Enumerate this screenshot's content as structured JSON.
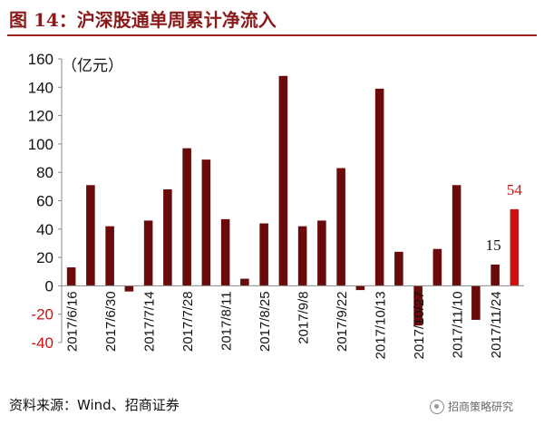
{
  "page": {
    "title": "图 14：沪深股通单周累计净流入",
    "source": "资料来源：Wind、招商证券",
    "watermark": "招商策略研究",
    "watermark_icon": "wechat-icon"
  },
  "chart_data": {
    "type": "bar",
    "unit_label": "（亿元）",
    "ylim": [
      -40,
      160
    ],
    "yticks": [
      -40,
      -20,
      0,
      20,
      40,
      60,
      80,
      100,
      120,
      140,
      160
    ],
    "grid": false,
    "bar_color": "#6b0a0a",
    "highlight_color": "#cc1111",
    "negative_tick_color": "#cc1111",
    "x_tick_labels": [
      "2017/6/16",
      "2017/6/30",
      "2017/7/14",
      "2017/7/28",
      "2017/8/11",
      "2017/8/25",
      "2017/9/8",
      "2017/9/22",
      "2017/10/13",
      "2017/10/27",
      "2017/11/10",
      "2017/11/24"
    ],
    "values": [
      13,
      71,
      42,
      -4,
      46,
      68,
      97,
      89,
      47,
      5,
      44,
      148,
      42,
      46,
      83,
      -3,
      139,
      24,
      -28,
      26,
      71,
      -24,
      15,
      54
    ],
    "data_labels": [
      {
        "index": 22,
        "text": "15",
        "color": "#111111"
      },
      {
        "index": 23,
        "text": "54",
        "color": "#cc1111"
      }
    ],
    "highlight_index": 23
  }
}
